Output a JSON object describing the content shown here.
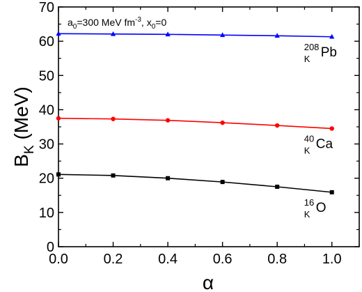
{
  "chart_data": {
    "type": "line",
    "xlabel": "α",
    "ylabel": {
      "main": "B",
      "sub": "K",
      "unit": " (MeV)"
    },
    "xlim": [
      0.0,
      1.1
    ],
    "ylim": [
      0,
      70
    ],
    "xticks": [
      0.0,
      0.2,
      0.4,
      0.6,
      0.8,
      1.0
    ],
    "xtick_labels": [
      "0.0",
      "0.2",
      "0.4",
      "0.6",
      "0.8",
      "1.0"
    ],
    "yticks": [
      0,
      10,
      20,
      30,
      40,
      50,
      60,
      70
    ],
    "ytick_labels": [
      "0",
      "10",
      "20",
      "30",
      "40",
      "50",
      "60",
      "70"
    ],
    "grid": false,
    "annotation": {
      "a_main": "a",
      "a_sub": "0",
      "a_val": "=300 MeV fm",
      "a_sup": "-3",
      "x_sep": ", x",
      "x_sub": "0",
      "x_val": "=0"
    },
    "x": [
      0.0,
      0.2,
      0.4,
      0.6,
      0.8,
      1.0
    ],
    "series": [
      {
        "label": {
          "sup": "208",
          "sub": "K",
          "main": "Pb"
        },
        "color": "#0000ff",
        "marker": "triangle",
        "values": [
          62.2,
          62.1,
          62.0,
          61.8,
          61.6,
          61.3
        ]
      },
      {
        "label": {
          "sup": "40",
          "sub": "K",
          "main": "Ca"
        },
        "color": "#ff0000",
        "marker": "circle",
        "values": [
          37.5,
          37.3,
          36.9,
          36.2,
          35.4,
          34.5
        ]
      },
      {
        "label": {
          "sup": "16",
          "sub": "K",
          "main": "O"
        },
        "color": "#000000",
        "marker": "square",
        "values": [
          21.1,
          20.8,
          20.0,
          18.9,
          17.5,
          15.9
        ]
      }
    ]
  }
}
